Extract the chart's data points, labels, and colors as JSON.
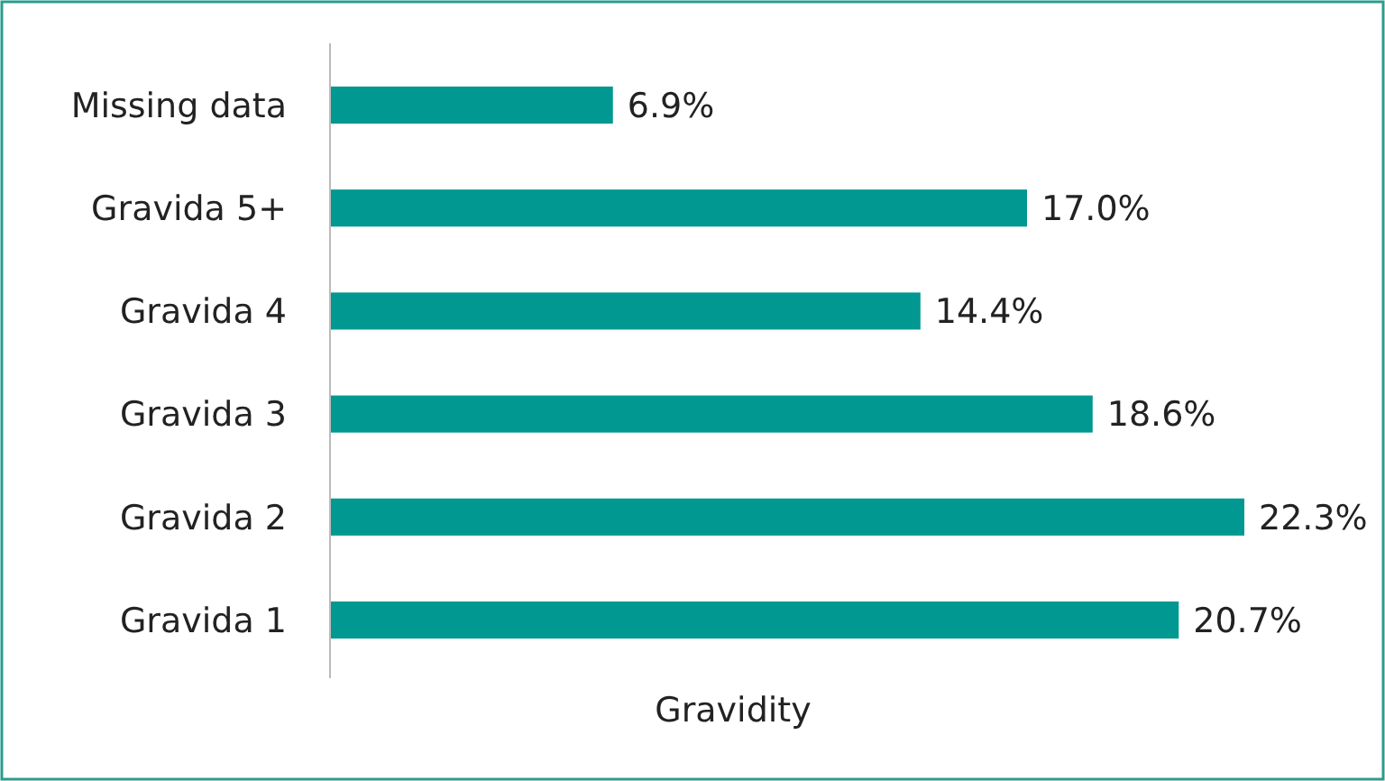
{
  "chart_data": {
    "type": "bar",
    "orientation": "horizontal",
    "xlabel": "Gravidity",
    "categories": [
      "Missing data",
      "Gravida 5+",
      "Gravida 4",
      "Gravida 3",
      "Gravida 2",
      "Gravida 1"
    ],
    "values": [
      6.9,
      17.0,
      14.4,
      18.6,
      22.3,
      20.7
    ],
    "value_labels": [
      "6.9%",
      "17.0%",
      "14.4%",
      "18.6%",
      "22.3%",
      "20.7%"
    ],
    "color": "#009891",
    "tick_labels": "y"
  }
}
